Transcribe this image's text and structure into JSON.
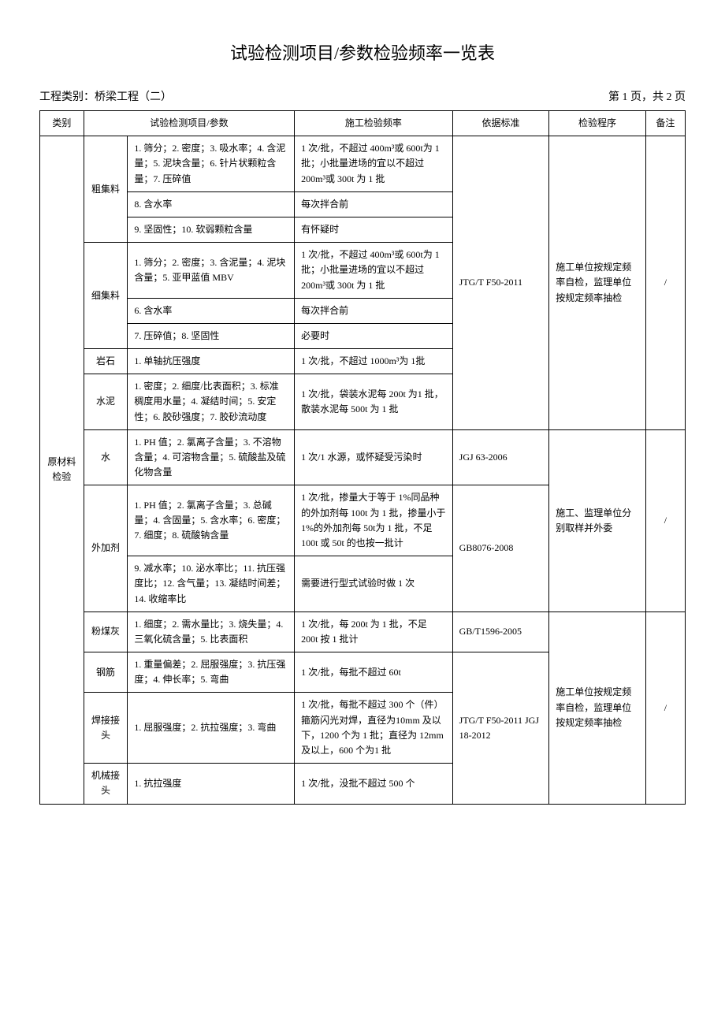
{
  "document": {
    "title": "试验检测项目/参数检验频率一览表",
    "project_type_label": "工程类别：桥梁工程（二）",
    "page_info": "第 1 页，共 2 页",
    "background_color": "#ffffff",
    "border_color": "#000000",
    "title_fontsize": 22,
    "body_fontsize": 12
  },
  "columns": {
    "c1": "类别",
    "c2": "试验检测项目/参数",
    "c3": "施工检验频率",
    "c4": "依据标准",
    "c5": "检验程序",
    "c6": "备注"
  },
  "category": "原材料检验",
  "groups": [
    {
      "name": "粗集料",
      "rows": [
        {
          "params": "1. 筛分；2. 密度；3. 吸水率；4. 含泥量；5. 泥块含量；6. 针片状颗粒含量；7. 压碎值",
          "freq": "1 次/批，不超过 400m³或 600t为 1 批；小批量进场的宜以不超过 200m³或 300t 为 1 批"
        },
        {
          "params": "8. 含水率",
          "freq": "每次拌合前"
        },
        {
          "params": "9. 坚固性；10. 软弱颗粒含量",
          "freq": "有怀疑时"
        }
      ]
    },
    {
      "name": "细集料",
      "rows": [
        {
          "params": "1. 筛分；2. 密度；3. 含泥量；4. 泥块含量；5. 亚甲蓝值 MBV",
          "freq": "1 次/批，不超过 400m³或 600t为 1 批；小批量进场的宜以不超过 200m³或 300t 为 1 批"
        },
        {
          "params": "6. 含水率",
          "freq": "每次拌合前"
        },
        {
          "params": "7. 压碎值；8. 坚固性",
          "freq": "必要时"
        }
      ]
    },
    {
      "name": "岩石",
      "rows": [
        {
          "params": "1. 单轴抗压强度",
          "freq": "1 次/批，不超过 1000m³为 1批"
        }
      ]
    },
    {
      "name": "水泥",
      "rows": [
        {
          "params": "1. 密度；2. 细度/比表面积；3. 标准稠度用水量；4. 凝结时间；5. 安定性；6. 胶砂强度；7. 胶砂流动度",
          "freq": "1 次/批，袋装水泥每 200t 为1 批，散装水泥每 500t 为 1 批"
        }
      ]
    },
    {
      "name": "水",
      "rows": [
        {
          "params": "1. PH 值；2. 氯离子含量；3. 不溶物含量；4. 可溶物含量；5. 硫酸盐及硫化物含量",
          "freq": "1 次/1 水源，或怀疑受污染时"
        }
      ]
    },
    {
      "name": "外加剂",
      "rows": [
        {
          "params": "1. PH 值；2. 氯离子含量；3. 总碱量；4. 含固量；5. 含水率；6. 密度；7. 细度；8. 硫酸钠含量",
          "freq": "1 次/批，掺量大于等于 1%同品种的外加剂每 100t 为 1 批，掺量小于 1%的外加剂每 50t为 1 批，不足 100t 或 50t 的也按一批计"
        },
        {
          "params": "9. 减水率；10. 泌水率比；11. 抗压强度比；12. 含气量；13. 凝结时间差；14. 收缩率比",
          "freq": "需要进行型式试验时做 1 次"
        }
      ]
    },
    {
      "name": "粉煤灰",
      "rows": [
        {
          "params": "1. 细度；2. 需水量比；3. 烧失量；4. 三氧化硫含量；5. 比表面积",
          "freq": "1 次/批，每 200t 为 1 批，不足 200t 按 1 批计"
        }
      ]
    },
    {
      "name": "钢筋",
      "rows": [
        {
          "params": "1. 重量偏差；2. 屈服强度；3. 抗压强度；4. 伸长率；5. 弯曲",
          "freq": "1 次/批，每批不超过 60t"
        }
      ]
    },
    {
      "name": "焊接接头",
      "rows": [
        {
          "params": "1. 屈服强度；2. 抗拉强度；3. 弯曲",
          "freq": "1 次/批，每批不超过 300 个（件）箍筋闪光对焊，直径为10mm 及以下，1200 个为 1 批；直径为 12mm 及以上，600 个为1 批"
        }
      ]
    },
    {
      "name": "机械接头",
      "rows": [
        {
          "params": "1. 抗拉强度",
          "freq": "1 次/批，没批不超过 500 个"
        }
      ]
    }
  ],
  "standards": {
    "s1": "JTG/T F50-2011",
    "s2": "JGJ 63-2006",
    "s3": "GB8076-2008",
    "s4": "GB/T1596-2005",
    "s5": "JTG/T F50-2011 JGJ 18-2012"
  },
  "procedures": {
    "p1": "施工单位按规定频率自检，监理单位按规定频率抽检",
    "p2": "施工、监理单位分别取样并外委",
    "p3": "施工单位按规定频率自检，监理单位按规定频率抽检"
  },
  "notes": {
    "n1": "/",
    "n2": "/",
    "n3": "/"
  }
}
